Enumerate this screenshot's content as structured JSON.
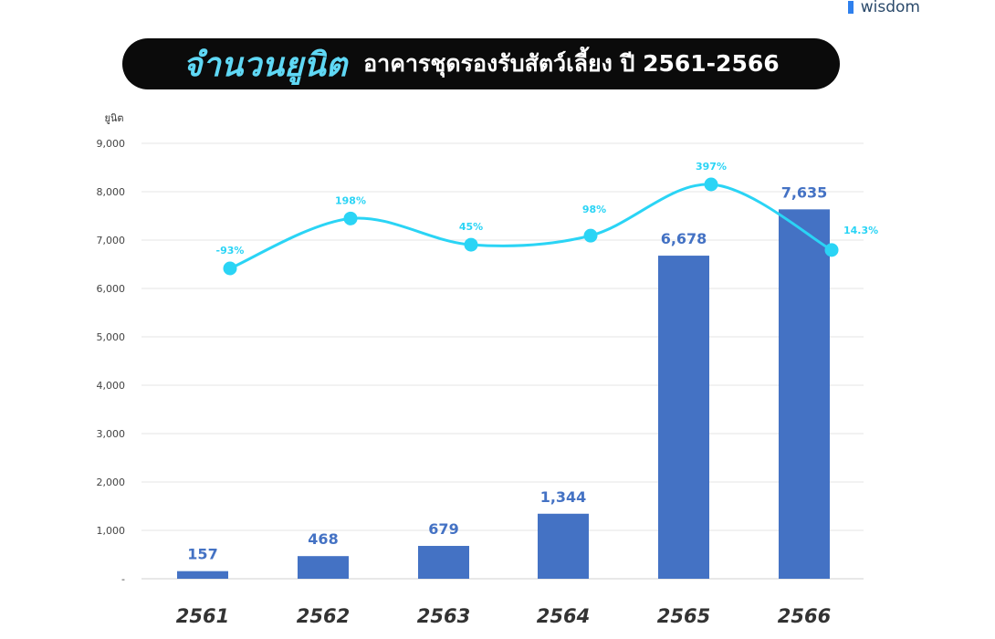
{
  "brand": {
    "name": "wisdom",
    "accent": "#2f80ed"
  },
  "title": {
    "main": "จำนวนยูนิต",
    "sub": "อาคารชุดรองรับสัตว์เลี้ยง ปี 2561-2566"
  },
  "chart_data": {
    "type": "bar",
    "categories": [
      "2561",
      "2562",
      "2563",
      "2564",
      "2565",
      "2566"
    ],
    "series": [
      {
        "type": "bar",
        "values": [
          157,
          468,
          679,
          1344,
          6678,
          7635
        ],
        "labels": [
          "157",
          "468",
          "679",
          "1,344",
          "6,678",
          "7,635"
        ],
        "color": "#4472c4"
      },
      {
        "type": "line",
        "values": [
          -93,
          198,
          45,
          98,
          397,
          14.3
        ],
        "labels": [
          "-93%",
          "198%",
          "45%",
          "98%",
          "397%",
          "14.3%"
        ],
        "color": "#2ad4f5"
      }
    ],
    "ylabel": "ยูนิต",
    "ylim": [
      0,
      9000
    ],
    "yticks": [
      "-",
      "1,000",
      "2,000",
      "3,000",
      "4,000",
      "5,000",
      "6,000",
      "7,000",
      "8,000",
      "9,000"
    ],
    "grid": true,
    "legend": "none"
  }
}
